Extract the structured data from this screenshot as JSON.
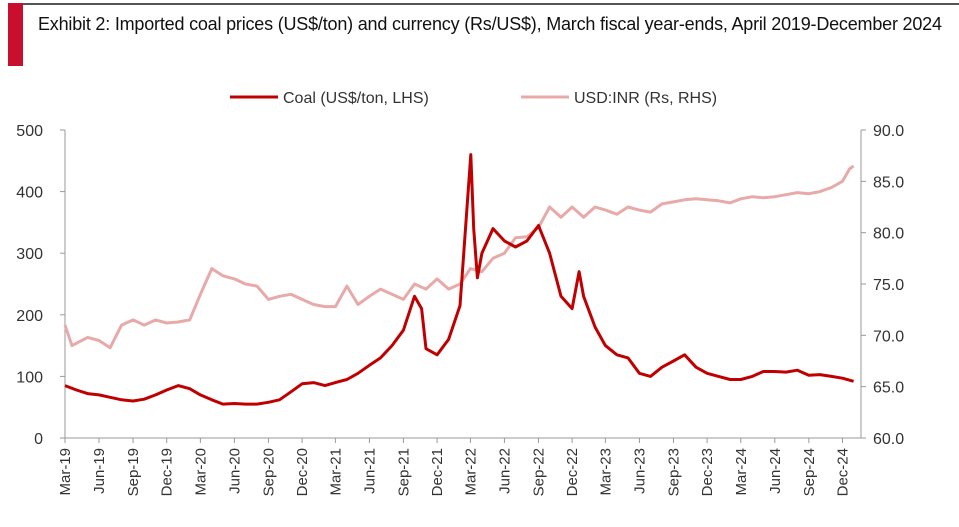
{
  "header": {
    "title": "Exhibit 2: Imported coal prices (US$/ton) and currency (Rs/US$), March fiscal year-ends, April 2019-December 2024",
    "accent_color": "#c8102e"
  },
  "chart_data": {
    "type": "line",
    "title": "Exhibit 2: Imported coal prices (US$/ton) and currency (Rs/US$), March fiscal year-ends, April 2019-December 2024",
    "legend_position": "top-center",
    "grid": false,
    "x_ticks": [
      "Mar-19",
      "Jun-19",
      "Sep-19",
      "Dec-19",
      "Mar-20",
      "Jun-20",
      "Sep-20",
      "Dec-20",
      "Mar-21",
      "Jun-21",
      "Sep-21",
      "Dec-21",
      "Mar-22",
      "Jun-22",
      "Sep-22",
      "Dec-22",
      "Mar-23",
      "Jun-23",
      "Sep-23",
      "Dec-23",
      "Mar-24",
      "Jun-24",
      "Sep-24",
      "Dec-24"
    ],
    "y_left": {
      "label": "",
      "lim": [
        0,
        500
      ],
      "ticks": [
        "0",
        "100",
        "200",
        "300",
        "400",
        "500"
      ]
    },
    "y_right": {
      "label": "",
      "lim": [
        60,
        90
      ],
      "ticks": [
        "60.0",
        "65.0",
        "70.0",
        "75.0",
        "80.0",
        "85.0",
        "90.0"
      ]
    },
    "series": [
      {
        "name": "Coal (US$/ton, LHS)",
        "axis": "left",
        "color": "#c00000",
        "points": [
          [
            "2019-03-01",
            85
          ],
          [
            "2019-04-01",
            78
          ],
          [
            "2019-05-01",
            72
          ],
          [
            "2019-06-01",
            70
          ],
          [
            "2019-07-01",
            66
          ],
          [
            "2019-08-01",
            62
          ],
          [
            "2019-09-01",
            60
          ],
          [
            "2019-10-01",
            63
          ],
          [
            "2019-11-01",
            70
          ],
          [
            "2019-12-01",
            78
          ],
          [
            "2020-01-01",
            85
          ],
          [
            "2020-02-01",
            80
          ],
          [
            "2020-03-01",
            70
          ],
          [
            "2020-04-01",
            62
          ],
          [
            "2020-05-01",
            55
          ],
          [
            "2020-06-01",
            56
          ],
          [
            "2020-07-01",
            55
          ],
          [
            "2020-08-01",
            55
          ],
          [
            "2020-09-01",
            58
          ],
          [
            "2020-10-01",
            62
          ],
          [
            "2020-11-01",
            75
          ],
          [
            "2020-12-01",
            88
          ],
          [
            "2021-01-01",
            90
          ],
          [
            "2021-02-01",
            85
          ],
          [
            "2021-03-01",
            90
          ],
          [
            "2021-04-01",
            95
          ],
          [
            "2021-05-01",
            105
          ],
          [
            "2021-06-01",
            118
          ],
          [
            "2021-07-01",
            130
          ],
          [
            "2021-08-01",
            150
          ],
          [
            "2021-09-01",
            175
          ],
          [
            "2021-10-01",
            230
          ],
          [
            "2021-10-20",
            210
          ],
          [
            "2021-11-01",
            145
          ],
          [
            "2021-12-01",
            135
          ],
          [
            "2022-01-01",
            160
          ],
          [
            "2022-02-01",
            215
          ],
          [
            "2022-03-02",
            460
          ],
          [
            "2022-03-10",
            340
          ],
          [
            "2022-03-20",
            260
          ],
          [
            "2022-04-01",
            300
          ],
          [
            "2022-05-01",
            340
          ],
          [
            "2022-06-01",
            320
          ],
          [
            "2022-07-01",
            310
          ],
          [
            "2022-08-01",
            320
          ],
          [
            "2022-09-01",
            345
          ],
          [
            "2022-10-01",
            300
          ],
          [
            "2022-11-01",
            230
          ],
          [
            "2022-12-01",
            210
          ],
          [
            "2022-12-20",
            270
          ],
          [
            "2023-01-01",
            230
          ],
          [
            "2023-02-01",
            180
          ],
          [
            "2023-03-01",
            150
          ],
          [
            "2023-04-01",
            135
          ],
          [
            "2023-05-01",
            130
          ],
          [
            "2023-06-01",
            105
          ],
          [
            "2023-07-01",
            100
          ],
          [
            "2023-08-01",
            115
          ],
          [
            "2023-09-01",
            125
          ],
          [
            "2023-10-01",
            135
          ],
          [
            "2023-11-01",
            115
          ],
          [
            "2023-12-01",
            105
          ],
          [
            "2024-01-01",
            100
          ],
          [
            "2024-02-01",
            95
          ],
          [
            "2024-03-01",
            95
          ],
          [
            "2024-04-01",
            100
          ],
          [
            "2024-05-01",
            108
          ],
          [
            "2024-06-01",
            108
          ],
          [
            "2024-07-01",
            107
          ],
          [
            "2024-08-01",
            110
          ],
          [
            "2024-09-01",
            102
          ],
          [
            "2024-10-01",
            103
          ],
          [
            "2024-11-01",
            100
          ],
          [
            "2024-12-01",
            97
          ],
          [
            "2024-12-31",
            92
          ]
        ]
      },
      {
        "name": "USD:INR (Rs, RHS)",
        "axis": "right",
        "color": "#e8a9a9",
        "points": [
          [
            "2019-03-01",
            71.0
          ],
          [
            "2019-03-20",
            69.0
          ],
          [
            "2019-05-01",
            69.8
          ],
          [
            "2019-06-01",
            69.5
          ],
          [
            "2019-07-01",
            68.8
          ],
          [
            "2019-08-01",
            71.0
          ],
          [
            "2019-09-01",
            71.5
          ],
          [
            "2019-10-01",
            71.0
          ],
          [
            "2019-11-01",
            71.5
          ],
          [
            "2019-12-01",
            71.2
          ],
          [
            "2020-01-01",
            71.3
          ],
          [
            "2020-02-01",
            71.5
          ],
          [
            "2020-03-01",
            74.0
          ],
          [
            "2020-04-01",
            76.5
          ],
          [
            "2020-05-01",
            75.8
          ],
          [
            "2020-06-01",
            75.5
          ],
          [
            "2020-07-01",
            75.0
          ],
          [
            "2020-08-01",
            74.8
          ],
          [
            "2020-09-01",
            73.5
          ],
          [
            "2020-10-01",
            73.8
          ],
          [
            "2020-11-01",
            74.0
          ],
          [
            "2020-12-01",
            73.5
          ],
          [
            "2021-01-01",
            73.0
          ],
          [
            "2021-02-01",
            72.8
          ],
          [
            "2021-03-01",
            72.8
          ],
          [
            "2021-04-01",
            74.8
          ],
          [
            "2021-05-01",
            73.0
          ],
          [
            "2021-06-01",
            73.8
          ],
          [
            "2021-07-01",
            74.5
          ],
          [
            "2021-08-01",
            74.0
          ],
          [
            "2021-09-01",
            73.5
          ],
          [
            "2021-10-01",
            75.0
          ],
          [
            "2021-11-01",
            74.5
          ],
          [
            "2021-12-01",
            75.5
          ],
          [
            "2022-01-01",
            74.5
          ],
          [
            "2022-02-01",
            75.0
          ],
          [
            "2022-03-01",
            76.5
          ],
          [
            "2022-04-01",
            76.2
          ],
          [
            "2022-05-01",
            77.5
          ],
          [
            "2022-06-01",
            78.0
          ],
          [
            "2022-07-01",
            79.5
          ],
          [
            "2022-08-01",
            79.6
          ],
          [
            "2022-09-01",
            80.5
          ],
          [
            "2022-10-01",
            82.5
          ],
          [
            "2022-11-01",
            81.5
          ],
          [
            "2022-12-01",
            82.5
          ],
          [
            "2023-01-01",
            81.5
          ],
          [
            "2023-02-01",
            82.5
          ],
          [
            "2023-03-01",
            82.2
          ],
          [
            "2023-04-01",
            81.8
          ],
          [
            "2023-05-01",
            82.5
          ],
          [
            "2023-06-01",
            82.2
          ],
          [
            "2023-07-01",
            82.0
          ],
          [
            "2023-08-01",
            82.8
          ],
          [
            "2023-09-01",
            83.0
          ],
          [
            "2023-10-01",
            83.2
          ],
          [
            "2023-11-01",
            83.3
          ],
          [
            "2023-12-01",
            83.2
          ],
          [
            "2024-01-01",
            83.1
          ],
          [
            "2024-02-01",
            82.9
          ],
          [
            "2024-03-01",
            83.3
          ],
          [
            "2024-04-01",
            83.5
          ],
          [
            "2024-05-01",
            83.4
          ],
          [
            "2024-06-01",
            83.5
          ],
          [
            "2024-07-01",
            83.7
          ],
          [
            "2024-08-01",
            83.9
          ],
          [
            "2024-09-01",
            83.8
          ],
          [
            "2024-10-01",
            84.0
          ],
          [
            "2024-11-01",
            84.4
          ],
          [
            "2024-12-01",
            85.0
          ],
          [
            "2024-12-20",
            86.2
          ],
          [
            "2024-12-31",
            86.5
          ]
        ]
      }
    ]
  }
}
